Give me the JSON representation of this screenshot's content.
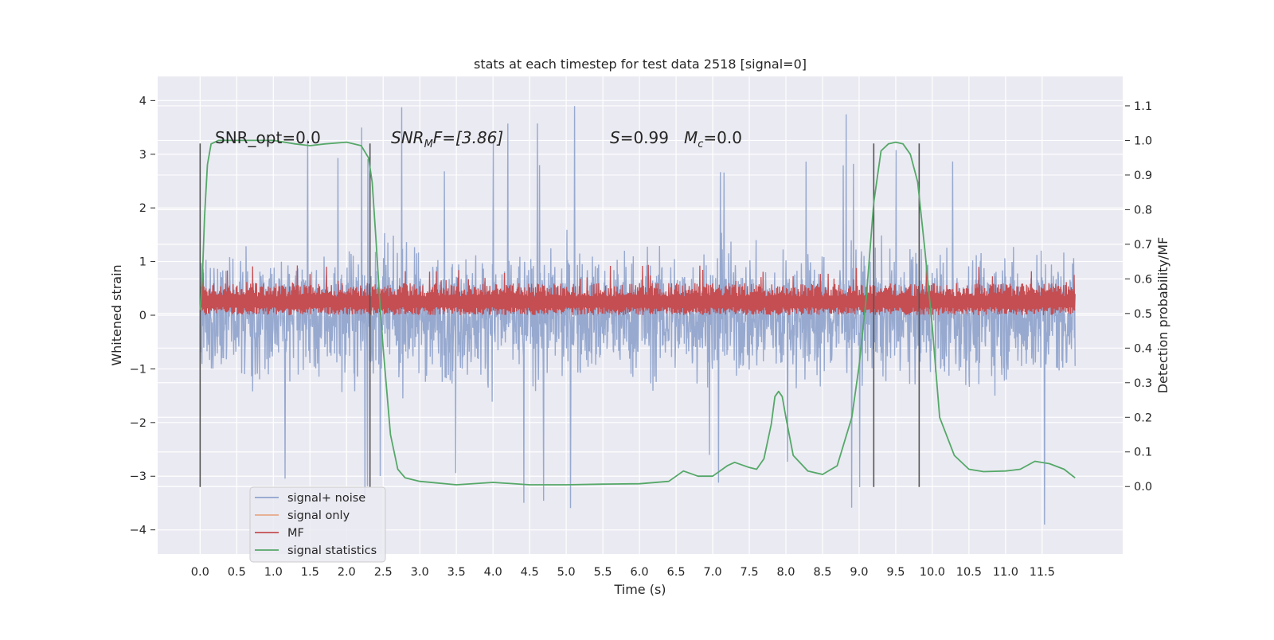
{
  "chart_data": {
    "type": "line",
    "title": "stats at each timestep for test data 2518 [signal=0]",
    "xlabel": "Time (s)",
    "ylabel": "Whitened strain",
    "y2label": "Detection probability/MF",
    "xlim": [
      -0.58,
      12.6
    ],
    "ylim": [
      -4.45,
      4.45
    ],
    "y2lim": [
      -0.195,
      1.185
    ],
    "x_ticks": [
      0.0,
      0.5,
      1.0,
      1.5,
      2.0,
      2.5,
      3.0,
      3.5,
      4.0,
      4.5,
      5.0,
      5.5,
      6.0,
      6.5,
      7.0,
      7.5,
      8.0,
      8.5,
      9.0,
      9.5,
      10.0,
      10.5,
      11.0,
      11.5
    ],
    "x_tick_labels": [
      "0.0",
      "0.5",
      "1.0",
      "1.5",
      "2.0",
      "2.5",
      "3.0",
      "3.5",
      "4.0",
      "4.5",
      "5.0",
      "5.5",
      "6.0",
      "6.5",
      "7.0",
      "7.5",
      "8.0",
      "8.5",
      "9.0",
      "9.5",
      "10.0",
      "10.5",
      "11.0",
      "11.5"
    ],
    "y_ticks": [
      -4,
      -3,
      -2,
      -1,
      0,
      1,
      2,
      3,
      4
    ],
    "y_tick_labels": [
      "−4",
      "−3",
      "−2",
      "−1",
      "0",
      "1",
      "2",
      "3",
      "4"
    ],
    "y2_ticks": [
      0.0,
      0.1,
      0.2,
      0.3,
      0.4,
      0.5,
      0.6,
      0.7,
      0.8,
      0.9,
      1.0,
      1.1
    ],
    "y2_tick_labels": [
      "0.0",
      "0.1",
      "0.2",
      "0.3",
      "0.4",
      "0.5",
      "0.6",
      "0.7",
      "0.8",
      "0.9",
      "1.0",
      "1.1"
    ],
    "grid": true,
    "legend_position": "lower-left",
    "legend": [
      {
        "label": "signal+ noise",
        "color": "#8fa3cc"
      },
      {
        "label": "signal only",
        "color": "#e8a889"
      },
      {
        "label": "MF",
        "color": "#c44e52"
      },
      {
        "label": "signal statistics",
        "color": "#55a868"
      }
    ],
    "annotations": {
      "snr_opt": "SNR_opt=0.0",
      "snr_mf_sym": "SNR",
      "snr_mf_sub": "M",
      "snr_mf_rest": "F=[3.86]",
      "s_sym": "S",
      "s_val": "=0.99",
      "mc_sym": "M",
      "mc_sub": "c",
      "mc_val": "=0.0"
    },
    "vertical_lines": [
      0.0,
      2.32,
      9.2,
      9.82
    ],
    "vertical_line_range": [
      -3.2,
      3.2
    ],
    "noise": {
      "t_start": 0.0,
      "t_end": 11.95,
      "typical_abs_max": 2.1,
      "peak_max": 4.05,
      "peak_min": -4.1
    },
    "mf": {
      "t_start": 0.0,
      "t_end": 11.95,
      "base": 0.0,
      "typical_max": 0.6,
      "peak_max": 0.95
    },
    "signal_statistics": {
      "t": [
        0.0,
        0.03,
        0.06,
        0.1,
        0.15,
        0.25,
        0.5,
        1.0,
        1.3,
        1.5,
        1.7,
        2.0,
        2.2,
        2.3,
        2.35,
        2.4,
        2.45,
        2.5,
        2.6,
        2.7,
        2.8,
        3.0,
        3.5,
        4.0,
        4.5,
        5.0,
        5.5,
        6.0,
        6.4,
        6.6,
        6.8,
        7.0,
        7.2,
        7.3,
        7.5,
        7.6,
        7.7,
        7.8,
        7.85,
        7.9,
        7.95,
        8.0,
        8.1,
        8.3,
        8.5,
        8.7,
        8.9,
        9.0,
        9.1,
        9.2,
        9.3,
        9.4,
        9.5,
        9.6,
        9.7,
        9.8,
        9.9,
        10.0,
        10.1,
        10.3,
        10.5,
        10.7,
        11.0,
        11.2,
        11.4,
        11.6,
        11.8,
        11.95
      ],
      "p": [
        0.51,
        0.6,
        0.78,
        0.93,
        0.99,
        1.0,
        1.0,
        1.0,
        0.99,
        0.985,
        0.99,
        0.995,
        0.985,
        0.95,
        0.88,
        0.72,
        0.55,
        0.4,
        0.15,
        0.05,
        0.025,
        0.015,
        0.005,
        0.012,
        0.005,
        0.005,
        0.007,
        0.008,
        0.015,
        0.045,
        0.03,
        0.03,
        0.06,
        0.07,
        0.055,
        0.05,
        0.08,
        0.18,
        0.26,
        0.275,
        0.26,
        0.2,
        0.09,
        0.045,
        0.035,
        0.06,
        0.2,
        0.35,
        0.55,
        0.82,
        0.97,
        0.99,
        0.995,
        0.99,
        0.96,
        0.88,
        0.68,
        0.46,
        0.2,
        0.09,
        0.05,
        0.043,
        0.045,
        0.05,
        0.073,
        0.066,
        0.05,
        0.025
      ]
    }
  }
}
